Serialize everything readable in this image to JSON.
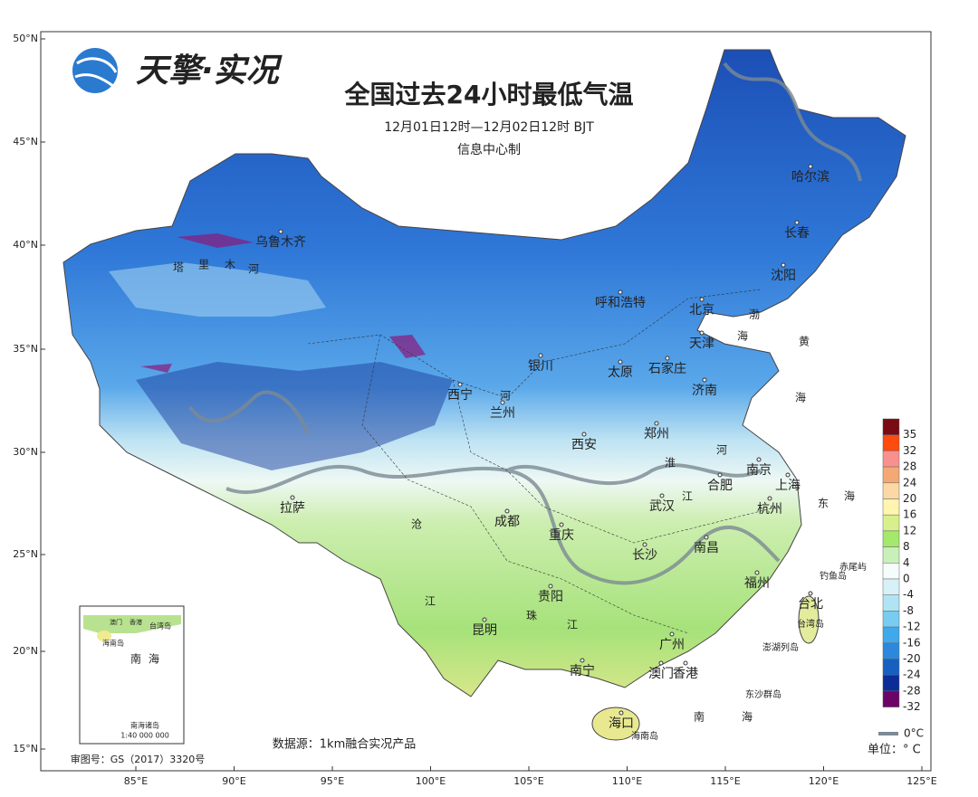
{
  "header": {
    "logo": "天擎·实况",
    "title": "全国过去24小时最低气温",
    "subtitle": "12月01日12时—12月02日12时 BJT",
    "producer": "信息中心制"
  },
  "axes": {
    "lat": [
      "50°N",
      "45°N",
      "40°N",
      "35°N",
      "30°N",
      "25°N",
      "20°N",
      "15°N"
    ],
    "lon": [
      "85°E",
      "90°E",
      "95°E",
      "100°E",
      "105°E",
      "110°E",
      "115°E",
      "120°E",
      "125°E"
    ]
  },
  "cities": [
    "乌鲁木齐",
    "哈尔滨",
    "长春",
    "沈阳",
    "呼和浩特",
    "北京",
    "天津",
    "银川",
    "太原",
    "石家庄",
    "济南",
    "西宁",
    "兰州",
    "郑州",
    "西安",
    "南京",
    "合肥",
    "上海",
    "武汉",
    "杭州",
    "成都",
    "重庆",
    "长沙",
    "南昌",
    "拉萨",
    "福州",
    "贵阳",
    "台北",
    "昆明",
    "南宁",
    "广州",
    "澳门",
    "香港",
    "海口"
  ],
  "islands": [
    "钓鱼岛",
    "赤尾屿",
    "台湾岛",
    "澎湖列岛",
    "东沙群岛",
    "海南岛"
  ],
  "waters": [
    "渤",
    "海",
    "黄",
    "海",
    "东",
    "海",
    "南",
    "海",
    "塔",
    "里",
    "木",
    "河",
    "河",
    "淮",
    "河",
    "江",
    "珠",
    "江",
    "沧",
    "江"
  ],
  "legend": {
    "items": [
      {
        "label": 35,
        "color": "#7a0a14"
      },
      {
        "label": 32,
        "color": "#ff4a10"
      },
      {
        "label": 28,
        "color": "#f89090"
      },
      {
        "label": 24,
        "color": "#f4a874"
      },
      {
        "label": 20,
        "color": "#fcd8a4"
      },
      {
        "label": 16,
        "color": "#fff4b0"
      },
      {
        "label": 12,
        "color": "#d8f08c"
      },
      {
        "label": 8,
        "color": "#a4e86c"
      },
      {
        "label": 4,
        "color": "#c8f0b8"
      },
      {
        "label": 0,
        "color": "#f4fcfc"
      },
      {
        "label": -4,
        "color": "#d8f0f8"
      },
      {
        "label": -8,
        "color": "#b0e4f4"
      },
      {
        "label": -12,
        "color": "#78ccf0"
      },
      {
        "label": -16,
        "color": "#40a8ec"
      },
      {
        "label": -20,
        "color": "#2c88dc"
      },
      {
        "label": -24,
        "color": "#1860c0"
      },
      {
        "label": -28,
        "color": "#0c2c98"
      },
      {
        "label": -32,
        "color": "#6c0468"
      }
    ],
    "contour_label": "0°C",
    "unit": "单位：° C"
  },
  "inset": {
    "labels": [
      "澳门",
      "香港",
      "台湾岛",
      "海南岛",
      "南",
      "海",
      "南海诸岛",
      "1:40 000 000"
    ]
  },
  "footer": {
    "source": "数据源：1km融合实况产品",
    "approval": "审图号：GS（2017）3320号"
  }
}
